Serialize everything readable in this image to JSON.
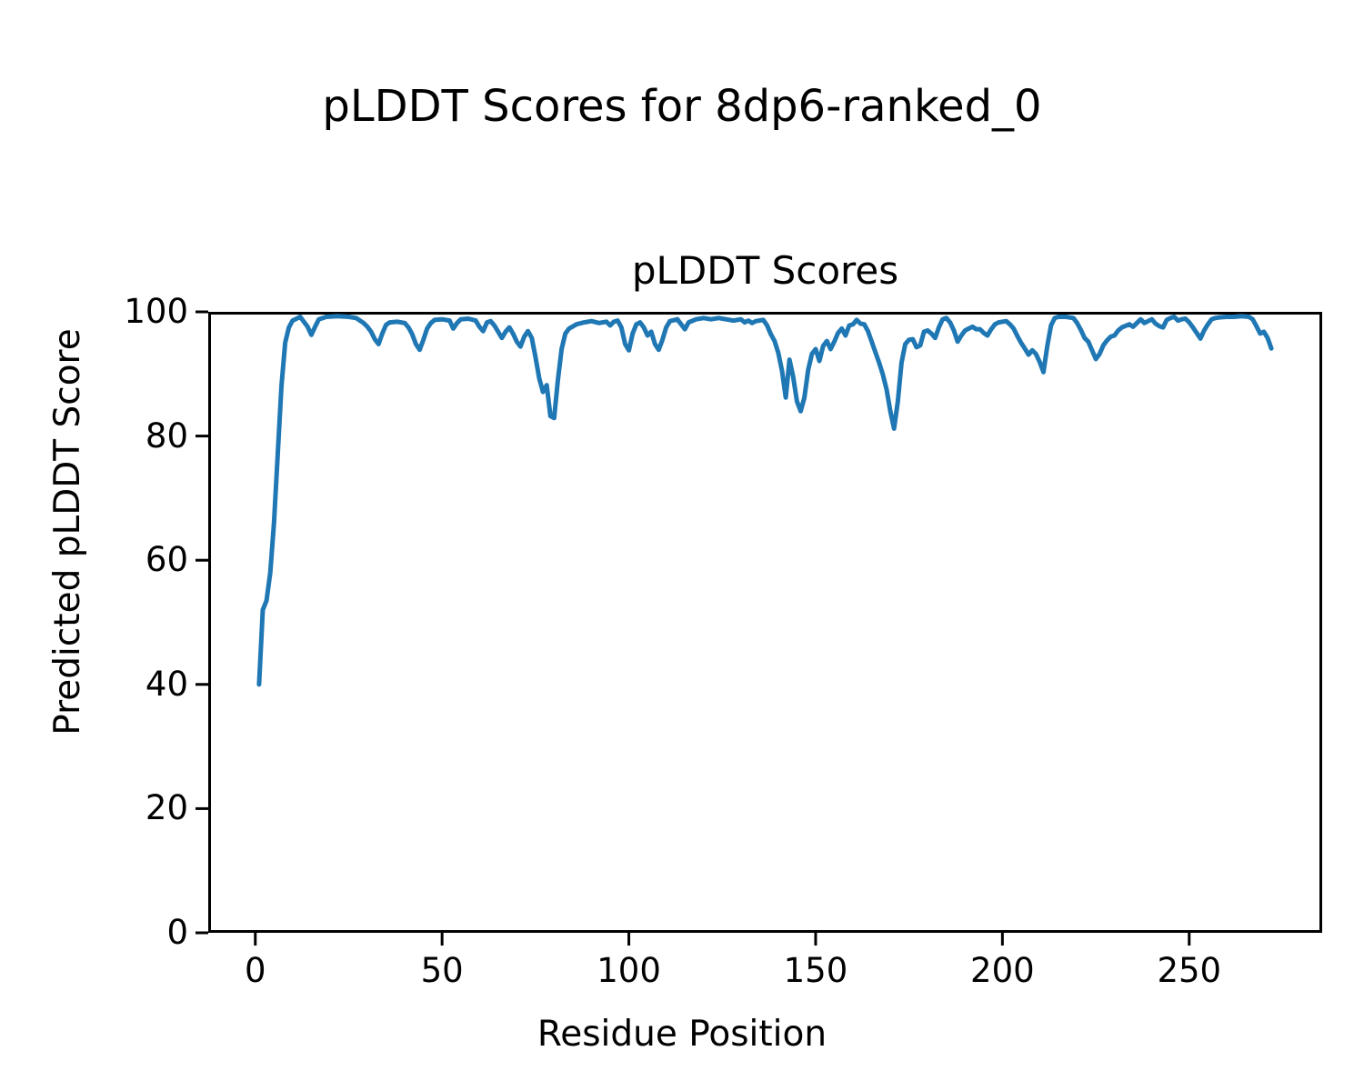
{
  "figure": {
    "suptitle": "pLDDT Scores for 8dp6-ranked_0",
    "background": "#ffffff",
    "text_color": "#000000"
  },
  "chart_data": {
    "type": "line",
    "title": "pLDDT Scores",
    "xlabel": "Residue Position",
    "ylabel": "Predicted pLDDT Score",
    "xlim": [
      -12.6,
      285.6
    ],
    "ylim": [
      0,
      100
    ],
    "x_ticks": [
      0,
      50,
      100,
      150,
      200,
      250
    ],
    "y_ticks": [
      0,
      20,
      40,
      60,
      80,
      100
    ],
    "grid": false,
    "legend_position": "none",
    "line_color": "#1f77b4",
    "spine_color": "#000000",
    "series": [
      {
        "name": "pLDDT",
        "points": [
          [
            1,
            40
          ],
          [
            2,
            52
          ],
          [
            3,
            53.5
          ],
          [
            4,
            58
          ],
          [
            5,
            66
          ],
          [
            6,
            77
          ],
          [
            7,
            88
          ],
          [
            8,
            95
          ],
          [
            9,
            97.5
          ],
          [
            10,
            98.6
          ],
          [
            12,
            99.2
          ],
          [
            14,
            97.6
          ],
          [
            15,
            96.3
          ],
          [
            16,
            97.6
          ],
          [
            17,
            98.8
          ],
          [
            19,
            99.2
          ],
          [
            22,
            99.3
          ],
          [
            25,
            99.2
          ],
          [
            27,
            99
          ],
          [
            29,
            98.2
          ],
          [
            30,
            97.6
          ],
          [
            31,
            96.8
          ],
          [
            32,
            95.6
          ],
          [
            33,
            94.8
          ],
          [
            34,
            96.5
          ],
          [
            35,
            97.9
          ],
          [
            36,
            98.3
          ],
          [
            38,
            98.4
          ],
          [
            40,
            98.2
          ],
          [
            41,
            97.5
          ],
          [
            42,
            96.4
          ],
          [
            43,
            94.8
          ],
          [
            44,
            93.9
          ],
          [
            45,
            95.5
          ],
          [
            46,
            97.3
          ],
          [
            47,
            98.2
          ],
          [
            48,
            98.7
          ],
          [
            50,
            98.8
          ],
          [
            52,
            98.6
          ],
          [
            53,
            97.3
          ],
          [
            54,
            98.2
          ],
          [
            55,
            98.8
          ],
          [
            57,
            98.9
          ],
          [
            59,
            98.6
          ],
          [
            60,
            97.6
          ],
          [
            61,
            96.9
          ],
          [
            62,
            98.3
          ],
          [
            63,
            98.5
          ],
          [
            64,
            97.8
          ],
          [
            65,
            96.8
          ],
          [
            66,
            95.8
          ],
          [
            67,
            96.8
          ],
          [
            68,
            97.5
          ],
          [
            69,
            96.5
          ],
          [
            70,
            95.2
          ],
          [
            71,
            94.4
          ],
          [
            72,
            96
          ],
          [
            73,
            96.9
          ],
          [
            74,
            95.8
          ],
          [
            75,
            92.7
          ],
          [
            76,
            89.3
          ],
          [
            77,
            87.1
          ],
          [
            78,
            88.2
          ],
          [
            78.5,
            85.8
          ],
          [
            79,
            83.2
          ],
          [
            80,
            82.9
          ],
          [
            81,
            89
          ],
          [
            82,
            94
          ],
          [
            83,
            96.5
          ],
          [
            84,
            97.3
          ],
          [
            86,
            98
          ],
          [
            88,
            98.3
          ],
          [
            90,
            98.5
          ],
          [
            92,
            98.2
          ],
          [
            94,
            98.4
          ],
          [
            95,
            97.8
          ],
          [
            96,
            98.4
          ],
          [
            97,
            98.6
          ],
          [
            98,
            97.5
          ],
          [
            99,
            94.8
          ],
          [
            100,
            93.8
          ],
          [
            101,
            96.5
          ],
          [
            102,
            98
          ],
          [
            103,
            98.3
          ],
          [
            104,
            97.5
          ],
          [
            105,
            96.2
          ],
          [
            106,
            96.8
          ],
          [
            107,
            94.8
          ],
          [
            108,
            93.9
          ],
          [
            109,
            95.5
          ],
          [
            110,
            97.5
          ],
          [
            111,
            98.5
          ],
          [
            113,
            98.8
          ],
          [
            114,
            98
          ],
          [
            115,
            97.2
          ],
          [
            116,
            98.3
          ],
          [
            118,
            98.8
          ],
          [
            120,
            99
          ],
          [
            122,
            98.8
          ],
          [
            124,
            99
          ],
          [
            126,
            98.8
          ],
          [
            128,
            98.6
          ],
          [
            130,
            98.8
          ],
          [
            131,
            98.3
          ],
          [
            132,
            98.6
          ],
          [
            133,
            98.2
          ],
          [
            134,
            98.5
          ],
          [
            136,
            98.7
          ],
          [
            137,
            97.8
          ],
          [
            138,
            96.4
          ],
          [
            139,
            95.3
          ],
          [
            140,
            93.4
          ],
          [
            141,
            90.5
          ],
          [
            142,
            86.2
          ],
          [
            143,
            92.3
          ],
          [
            144,
            89.5
          ],
          [
            145,
            85.6
          ],
          [
            146,
            84
          ],
          [
            147,
            86.2
          ],
          [
            148,
            90.6
          ],
          [
            149,
            93.2
          ],
          [
            150,
            94
          ],
          [
            151,
            92.1
          ],
          [
            152,
            94.5
          ],
          [
            153,
            95.3
          ],
          [
            154,
            94
          ],
          [
            155,
            95.2
          ],
          [
            156,
            96.6
          ],
          [
            157,
            97.3
          ],
          [
            158,
            96.2
          ],
          [
            159,
            97.8
          ],
          [
            160,
            98
          ],
          [
            161,
            98.7
          ],
          [
            162,
            98.1
          ],
          [
            163,
            98
          ],
          [
            164,
            96.9
          ],
          [
            165,
            95.2
          ],
          [
            166,
            93.5
          ],
          [
            167,
            91.8
          ],
          [
            168,
            89.9
          ],
          [
            169,
            87.5
          ],
          [
            170,
            84
          ],
          [
            171,
            81.2
          ],
          [
            172,
            85.5
          ],
          [
            173,
            91.8
          ],
          [
            174,
            94.8
          ],
          [
            175,
            95.5
          ],
          [
            176,
            95.6
          ],
          [
            177,
            94.3
          ],
          [
            178,
            94.6
          ],
          [
            179,
            96.8
          ],
          [
            180,
            97
          ],
          [
            181,
            96.5
          ],
          [
            182,
            95.8
          ],
          [
            183,
            97.5
          ],
          [
            184,
            98.8
          ],
          [
            185,
            99
          ],
          [
            186,
            98.3
          ],
          [
            187,
            97
          ],
          [
            188,
            95.2
          ],
          [
            189,
            96.2
          ],
          [
            190,
            97
          ],
          [
            191,
            97.3
          ],
          [
            192,
            97.6
          ],
          [
            193,
            97.2
          ],
          [
            194,
            97.2
          ],
          [
            195,
            96.6
          ],
          [
            196,
            96.2
          ],
          [
            197,
            97.2
          ],
          [
            198,
            98
          ],
          [
            199,
            98.3
          ],
          [
            201,
            98.5
          ],
          [
            202,
            98
          ],
          [
            203,
            97.3
          ],
          [
            204,
            96.1
          ],
          [
            205,
            95
          ],
          [
            206,
            94.1
          ],
          [
            207,
            93.1
          ],
          [
            208,
            93.8
          ],
          [
            209,
            93.2
          ],
          [
            210,
            91.9
          ],
          [
            211,
            90.3
          ],
          [
            212,
            94.5
          ],
          [
            213,
            97.8
          ],
          [
            214,
            99
          ],
          [
            215,
            99.2
          ],
          [
            217,
            99.2
          ],
          [
            219,
            99
          ],
          [
            220,
            98.2
          ],
          [
            221,
            97.1
          ],
          [
            222,
            95.8
          ],
          [
            223,
            95.2
          ],
          [
            224,
            93.8
          ],
          [
            225,
            92.4
          ],
          [
            226,
            93.2
          ],
          [
            227,
            94.6
          ],
          [
            228,
            95.4
          ],
          [
            229,
            96
          ],
          [
            230,
            96.2
          ],
          [
            231,
            97
          ],
          [
            232,
            97.5
          ],
          [
            234,
            98
          ],
          [
            235,
            97.6
          ],
          [
            236,
            98.2
          ],
          [
            237,
            98.8
          ],
          [
            238,
            98.2
          ],
          [
            239,
            98.5
          ],
          [
            240,
            98.8
          ],
          [
            241,
            98.1
          ],
          [
            242,
            97.7
          ],
          [
            243,
            97.5
          ],
          [
            244,
            98.7
          ],
          [
            245,
            99
          ],
          [
            246,
            99.2
          ],
          [
            247,
            98.6
          ],
          [
            248,
            98.8
          ],
          [
            249,
            98.9
          ],
          [
            250,
            98.3
          ],
          [
            251,
            97.5
          ],
          [
            252,
            96.6
          ],
          [
            253,
            95.7
          ],
          [
            254,
            97
          ],
          [
            255,
            98
          ],
          [
            256,
            98.8
          ],
          [
            257,
            99
          ],
          [
            258,
            99.1
          ],
          [
            260,
            99.2
          ],
          [
            262,
            99.2
          ],
          [
            264,
            99.3
          ],
          [
            266,
            99.2
          ],
          [
            267,
            98.8
          ],
          [
            268,
            97.7
          ],
          [
            269,
            96.5
          ],
          [
            270,
            96.8
          ],
          [
            271,
            95.8
          ],
          [
            272,
            94.1
          ]
        ]
      }
    ]
  }
}
